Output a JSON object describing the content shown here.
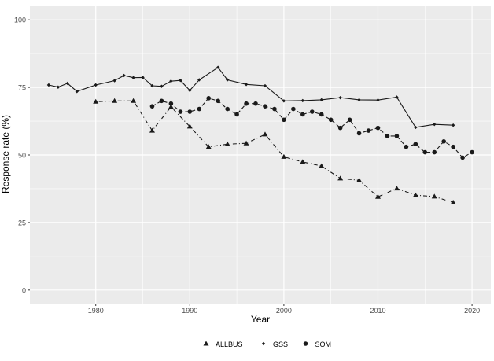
{
  "chart_data": {
    "type": "line",
    "title": "",
    "xlabel": "Year",
    "ylabel": "Response rate (%)",
    "xlim": [
      1973,
      2022
    ],
    "ylim": [
      -5,
      105
    ],
    "x_ticks": [
      1980,
      1990,
      2000,
      2010,
      2020
    ],
    "y_ticks": [
      0,
      25,
      50,
      75,
      100
    ],
    "grid": true,
    "legend_position": "bottom",
    "colors": {
      "panel": "#EBEBEB",
      "grid": "#FFFFFF",
      "line": "#1A1A1A",
      "axis_text": "#4D4D4D"
    },
    "series": [
      {
        "name": "ALLBUS",
        "marker": "triangle",
        "linestyle": "dotdash",
        "x": [
          1980,
          1982,
          1984,
          1986,
          1988,
          1990,
          1992,
          1994,
          1996,
          1998,
          2000,
          2002,
          2004,
          2006,
          2008,
          2010,
          2012,
          2014,
          2016,
          2018
        ],
        "y": [
          69.7,
          70.0,
          70.0,
          59.0,
          67.8,
          60.5,
          53.0,
          54.0,
          54.3,
          57.6,
          49.3,
          47.4,
          45.9,
          41.3,
          40.6,
          34.5,
          37.6,
          35.1,
          34.6,
          32.4
        ]
      },
      {
        "name": "GSS",
        "marker": "diamond",
        "linestyle": "solid",
        "x": [
          1975,
          1976,
          1977,
          1978,
          1980,
          1982,
          1983,
          1984,
          1985,
          1986,
          1987,
          1988,
          1989,
          1990,
          1991,
          1993,
          1994,
          1996,
          1998,
          2000,
          2002,
          2004,
          2006,
          2008,
          2010,
          2012,
          2014,
          2016,
          2018
        ],
        "y": [
          75.9,
          75.1,
          76.5,
          73.5,
          75.9,
          77.5,
          79.4,
          78.6,
          78.7,
          75.6,
          75.4,
          77.3,
          77.6,
          73.9,
          77.8,
          82.4,
          77.8,
          76.1,
          75.6,
          70.0,
          70.1,
          70.4,
          71.2,
          70.4,
          70.3,
          71.4,
          60.2,
          61.3,
          61.0
        ]
      },
      {
        "name": "SOM",
        "marker": "circle",
        "linestyle": "dashed",
        "x": [
          1986,
          1987,
          1988,
          1989,
          1990,
          1991,
          1992,
          1993,
          1994,
          1995,
          1996,
          1997,
          1998,
          1999,
          2000,
          2001,
          2002,
          2003,
          2004,
          2005,
          2006,
          2007,
          2008,
          2009,
          2010,
          2011,
          2012,
          2013,
          2014,
          2015,
          2016,
          2017,
          2018,
          2019,
          2020
        ],
        "y": [
          68,
          70,
          69,
          66,
          66,
          67,
          71,
          70,
          67,
          65,
          69,
          69,
          68,
          67,
          63,
          67,
          65,
          66,
          65,
          63,
          60,
          63,
          58,
          59,
          60,
          57,
          57,
          53,
          54,
          51,
          51,
          55,
          53,
          49,
          51
        ]
      }
    ]
  }
}
